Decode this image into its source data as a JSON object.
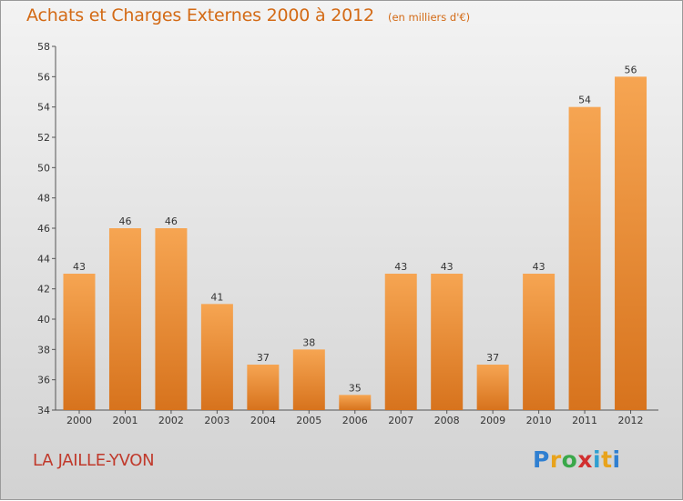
{
  "header": {
    "title": "Achats et Charges Externes 2000 à 2012",
    "unit": "(en milliers d'€)"
  },
  "footer": {
    "commune": "LA JAILLE-YVON",
    "logo_letters": [
      "P",
      "r",
      "o",
      "x",
      "i",
      "t",
      "i"
    ],
    "logo_colors": [
      "#2f7fd1",
      "#e8a31c",
      "#3aa84a",
      "#d12f2f",
      "#2f9fd1",
      "#e8a31c",
      "#2f7fd1"
    ]
  },
  "colors": {
    "bar_top": "#f6a552",
    "bar_bottom": "#d7731d",
    "title": "#d36a15",
    "commune": "#c0392b"
  },
  "chart_data": {
    "type": "bar",
    "title": "Achats et Charges Externes 2000 à 2012",
    "subtitle": "(en milliers d'€)",
    "categories": [
      "2000",
      "2001",
      "2002",
      "2003",
      "2004",
      "2005",
      "2006",
      "2007",
      "2008",
      "2009",
      "2010",
      "2011",
      "2012"
    ],
    "values": [
      43,
      46,
      46,
      41,
      37,
      38,
      35,
      43,
      43,
      37,
      43,
      54,
      56
    ],
    "ylim": [
      34,
      58
    ],
    "yticks": [
      34,
      36,
      38,
      40,
      42,
      44,
      46,
      48,
      50,
      52,
      54,
      56,
      58
    ],
    "grid": false,
    "xlabel": "",
    "ylabel": ""
  }
}
